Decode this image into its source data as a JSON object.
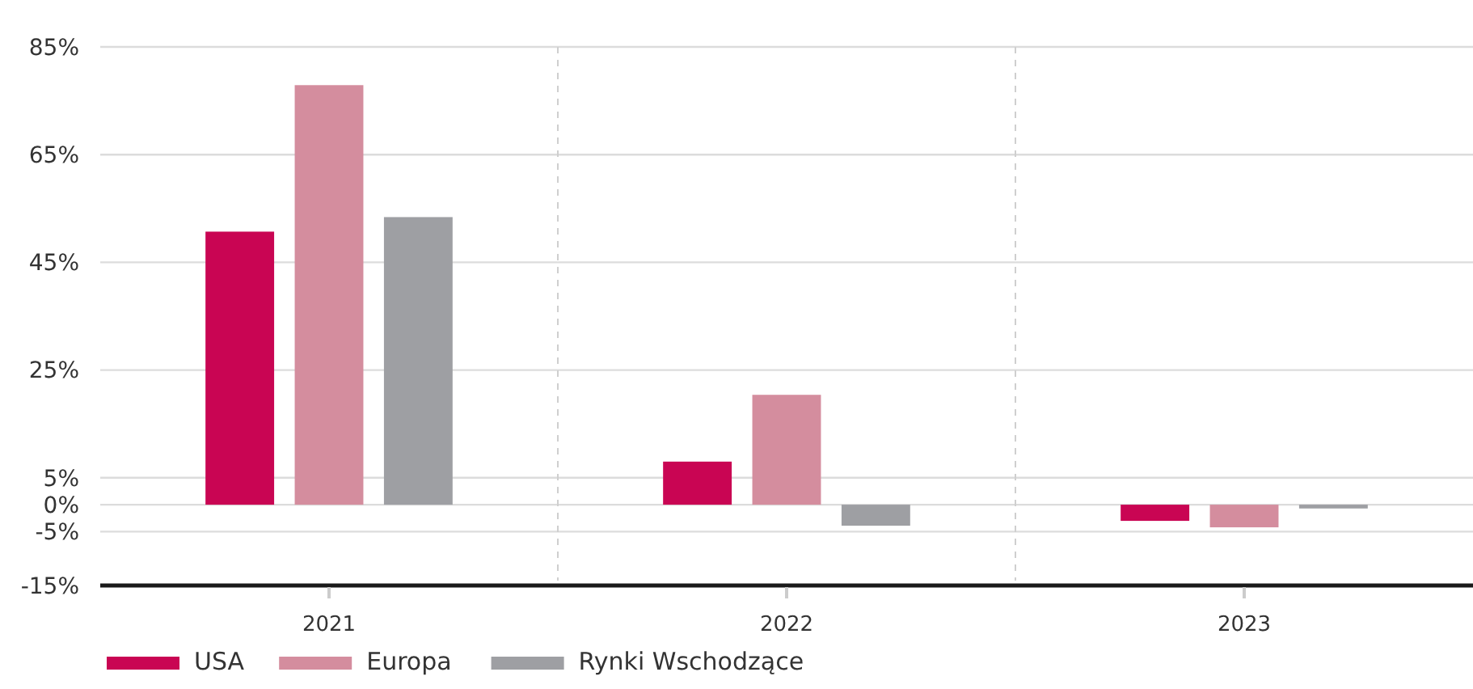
{
  "chart_data": {
    "type": "bar",
    "categories": [
      "2021",
      "2022",
      "2023"
    ],
    "series": [
      {
        "name": "USA",
        "color": "#c90553",
        "values": [
          50.7,
          8.0,
          -3.0
        ]
      },
      {
        "name": "Europa",
        "color": "#d48d9e",
        "values": [
          77.9,
          20.4,
          -4.2
        ]
      },
      {
        "name": "Rynki Wschodzące",
        "color": "#9e9fa3",
        "values": [
          53.4,
          -3.9,
          -0.7
        ]
      }
    ],
    "ylim": [
      -15,
      85
    ],
    "yticks": [
      {
        "value": 85,
        "label": "85%"
      },
      {
        "value": 65,
        "label": "65%"
      },
      {
        "value": 45,
        "label": "45%"
      },
      {
        "value": 25,
        "label": "25%"
      },
      {
        "value": 5,
        "label": "5%"
      },
      {
        "value": 0,
        "label": "0%"
      },
      {
        "value": -5,
        "label": "-5%"
      },
      {
        "value": -15,
        "label": "-15%"
      }
    ],
    "grid": "y",
    "legend": "bottom left"
  }
}
